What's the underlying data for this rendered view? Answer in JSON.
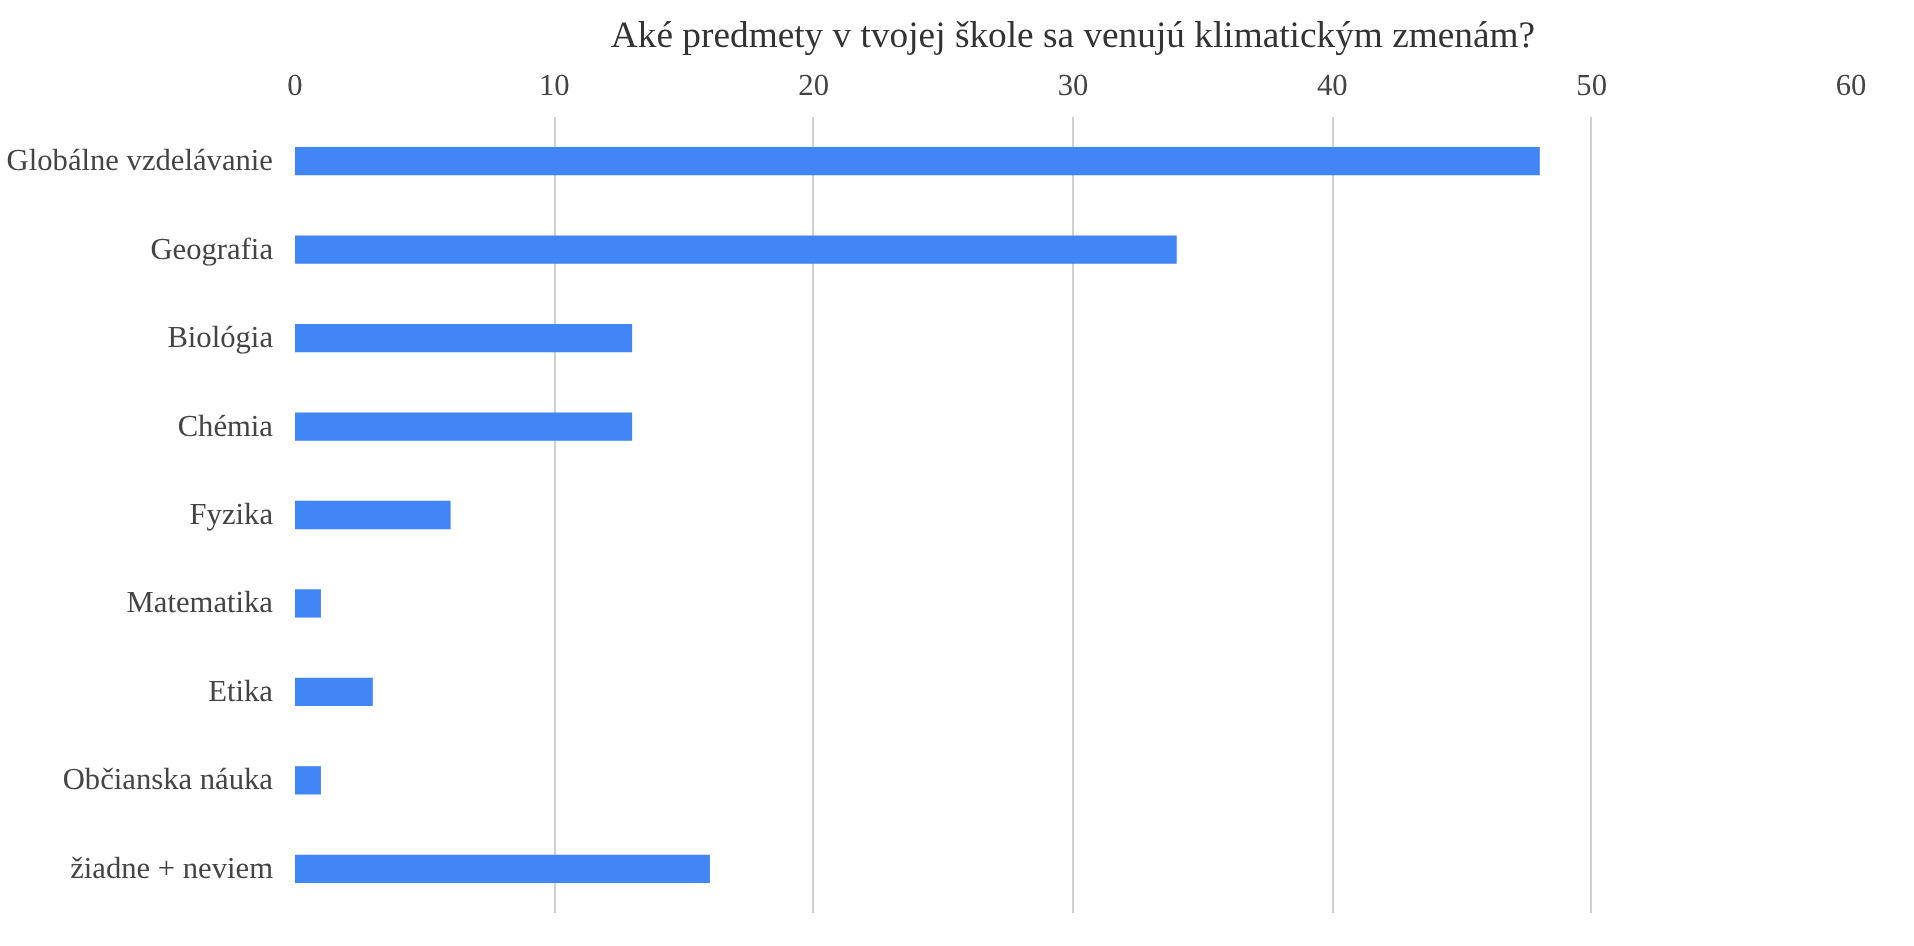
{
  "chart_data": {
    "type": "bar",
    "orientation": "horizontal",
    "title": "Aké predmety v tvojej škole sa venujú klimatickým zmenám?",
    "categories": [
      "Globálne vzdelávanie",
      "Geografia",
      "Biológia",
      "Chémia",
      "Fyzika",
      "Matematika",
      "Etika",
      "Občianska náuka",
      "žiadne + neviem"
    ],
    "values": [
      48,
      34,
      13,
      13,
      6,
      1,
      3,
      1,
      16
    ],
    "color": "#4285f4",
    "xlim": [
      0,
      60
    ],
    "xticks": [
      0,
      10,
      20,
      30,
      40,
      50,
      60
    ],
    "grid": "x"
  }
}
